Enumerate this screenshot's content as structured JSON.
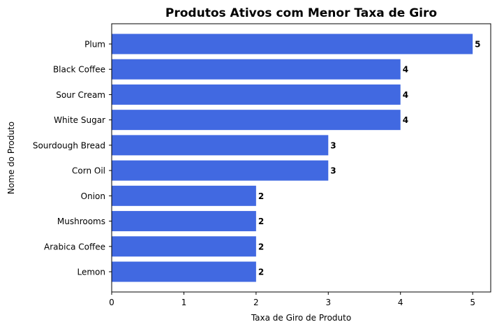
{
  "chart_data": {
    "type": "bar",
    "orientation": "horizontal",
    "title": "Produtos Ativos com Menor Taxa de Giro",
    "xlabel": "Taxa de Giro de Produto",
    "ylabel": "Nome do Produto",
    "categories": [
      "Plum",
      "Black Coffee",
      "Sour Cream",
      "White Sugar",
      "Sourdough Bread",
      "Corn Oil",
      "Onion",
      "Mushrooms",
      "Arabica Coffee",
      "Lemon"
    ],
    "values": [
      5,
      4,
      4,
      4,
      3,
      3,
      2,
      2,
      2,
      2
    ],
    "data_labels": [
      "5",
      "4",
      "4",
      "4",
      "3",
      "3",
      "2",
      "2",
      "2",
      "2"
    ],
    "xlim": [
      0,
      5.25
    ],
    "xticks": [
      0,
      1,
      2,
      3,
      4,
      5
    ],
    "xtick_labels": [
      "0",
      "1",
      "2",
      "3",
      "4",
      "5"
    ],
    "bar_color": "#4169e1",
    "grid": false,
    "legend": "none"
  }
}
